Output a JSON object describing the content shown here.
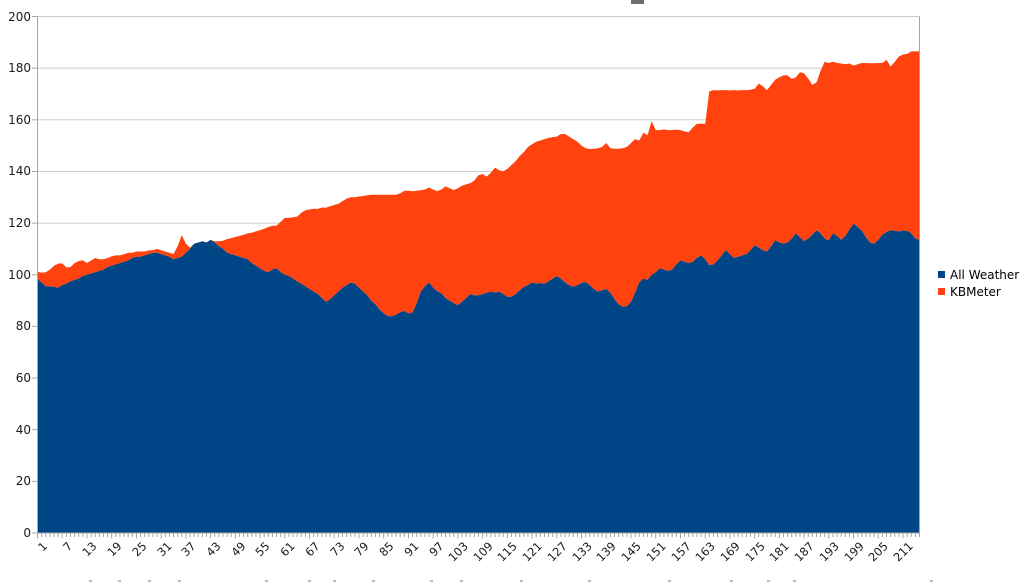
{
  "legend": {
    "items": [
      {
        "label": "All Weather",
        "color": "#004586"
      },
      {
        "label": "KBMeter",
        "color": "#ff420e"
      }
    ]
  },
  "colors": {
    "grid": "#cdcdcd",
    "axis": "#a6a6a6",
    "label_text": "#1a1a1a"
  },
  "chart_data": {
    "type": "area",
    "stacked": true,
    "title": "",
    "xlabel": "",
    "ylabel": "",
    "grid": "horizontal",
    "legend_position": "right",
    "ylim": [
      0,
      200
    ],
    "y_ticks": [
      0,
      20,
      40,
      60,
      80,
      100,
      120,
      140,
      160,
      180,
      200
    ],
    "x_first": 1,
    "x_step": 1,
    "x_count": 215,
    "x_tick_labels": [
      "1",
      "7",
      "13",
      "19",
      "25",
      "31",
      "37",
      "43",
      "49",
      "55",
      "61",
      "67",
      "73",
      "79",
      "85",
      "91",
      "97",
      "103",
      "109",
      "115",
      "121",
      "127",
      "133",
      "139",
      "145",
      "151",
      "157",
      "163",
      "169",
      "175",
      "181",
      "187",
      "193",
      "199",
      "205",
      "211"
    ],
    "series": [
      {
        "name": "All Weather",
        "color": "#004586",
        "values": [
          98.5,
          97,
          95.5,
          95.5,
          95.3,
          95,
          96,
          96.5,
          97.5,
          98,
          98.5,
          99.5,
          100,
          100.5,
          101,
          101.5,
          102,
          103,
          103.5,
          104,
          104.5,
          105,
          105.5,
          106.5,
          107,
          107,
          107.5,
          108,
          108.5,
          108.5,
          108,
          107.5,
          107,
          106,
          106.5,
          107,
          108.5,
          110,
          112,
          112.5,
          113,
          112.5,
          113.5,
          112.5,
          111,
          110,
          108.5,
          108,
          107.5,
          107,
          106.5,
          106,
          104.5,
          103.5,
          102.5,
          101.5,
          101,
          102,
          102.5,
          101,
          100,
          99.5,
          98.5,
          97.5,
          96.5,
          95.5,
          94.5,
          93.5,
          92.5,
          91,
          89.5,
          90.5,
          92,
          93.5,
          95,
          96,
          97,
          96.5,
          95,
          93.5,
          92,
          90,
          88.5,
          86.5,
          85,
          84,
          84,
          84.5,
          85.5,
          86,
          85,
          85.5,
          89,
          93.5,
          95.5,
          97,
          95,
          93.5,
          92.8,
          91,
          90,
          89,
          88.2,
          89.5,
          91,
          92.5,
          92,
          92,
          92.5,
          93,
          93.5,
          93,
          93.5,
          92.5,
          91.5,
          91.5,
          92.5,
          94,
          95.3,
          96,
          97,
          96.5,
          96.8,
          96.5,
          97.5,
          98.5,
          99.5,
          98.5,
          97,
          96,
          95.3,
          96,
          96.8,
          97.2,
          96,
          94.5,
          93.4,
          94,
          94.5,
          93,
          90.5,
          88.5,
          87.6,
          87.8,
          89.5,
          93,
          97,
          98.5,
          98,
          100,
          101,
          102.5,
          102,
          101.5,
          102,
          104,
          105.5,
          105,
          104.5,
          105,
          106.5,
          107.5,
          106,
          103.7,
          104,
          105.5,
          107.5,
          109.5,
          108,
          106.5,
          107,
          107.5,
          108,
          109.5,
          111.4,
          110.5,
          109.5,
          109,
          111,
          113.3,
          112.5,
          112,
          112.5,
          114,
          116,
          114.5,
          113,
          114,
          115.5,
          117.2,
          116,
          114,
          113.3,
          116,
          115,
          113.5,
          115,
          117.5,
          119.8,
          118.5,
          117,
          114.5,
          112.5,
          112,
          113.5,
          115.5,
          116.5,
          117.2,
          117,
          116.8,
          117,
          117,
          116,
          114,
          113.5
        ]
      },
      {
        "name": "KBMeter",
        "color": "#ff420e",
        "values": [
          2.7,
          3.8,
          5.5,
          6.5,
          8.2,
          9.3,
          8.4,
          6.3,
          5.5,
          6.5,
          6.8,
          6.1,
          4.5,
          5,
          5.5,
          4.5,
          4,
          3.5,
          3.7,
          3.5,
          3,
          3,
          3,
          2,
          2,
          2,
          1.5,
          1.5,
          1,
          1.5,
          1.5,
          1.5,
          1.5,
          2,
          4.5,
          8.3,
          3.5,
          0.5,
          0,
          0,
          0,
          0,
          0,
          0.5,
          2,
          3.2,
          5.3,
          6.2,
          7.1,
          8,
          9,
          10,
          11.8,
          13.3,
          14.8,
          16.3,
          17.5,
          17,
          16.5,
          19.5,
          22,
          22.5,
          23.8,
          25,
          27.5,
          29.5,
          30.8,
          32,
          33,
          35,
          36.5,
          36,
          35,
          34,
          33.5,
          33.5,
          33,
          33.5,
          35.3,
          37,
          38.8,
          41,
          42.5,
          44.5,
          46,
          47,
          47,
          46.5,
          46,
          46.5,
          47.5,
          46.8,
          43.5,
          39.2,
          37.5,
          36.8,
          38,
          38.9,
          40.2,
          43.2,
          43.5,
          43.8,
          45.3,
          45,
          44,
          43,
          44.5,
          46.5,
          46.5,
          45,
          46,
          48.5,
          47,
          47.5,
          49.5,
          51,
          51.5,
          52,
          52.2,
          53.5,
          53.5,
          55,
          55.2,
          56,
          55.5,
          54.8,
          54,
          56,
          57.5,
          57.5,
          57.2,
          55.5,
          53.2,
          51.8,
          52.7,
          54.3,
          55.6,
          55.5,
          56.5,
          56,
          58.3,
          60.3,
          61.4,
          61.7,
          61.5,
          59.5,
          55,
          56.5,
          56,
          59.5,
          55,
          53.5,
          54.3,
          54.5,
          54,
          52.2,
          50.5,
          50.5,
          50.7,
          52,
          52,
          51,
          52.5,
          67.3,
          67.5,
          65.9,
          64,
          62,
          63.4,
          65,
          64.4,
          64,
          63.5,
          62.1,
          60.6,
          63.5,
          63.5,
          62.5,
          62.5,
          62.2,
          64,
          65.2,
          64.7,
          61.8,
          60.5,
          63.9,
          65,
          62,
          58,
          57.3,
          63,
          68.5,
          68.7,
          66.5,
          67,
          68.3,
          66.5,
          64.3,
          61.2,
          63,
          65,
          67.5,
          69.4,
          69.9,
          68.5,
          66.5,
          66.7,
          63.4,
          65.5,
          67.7,
          68.3,
          68.5,
          70.5,
          72.5,
          73
        ]
      }
    ]
  }
}
